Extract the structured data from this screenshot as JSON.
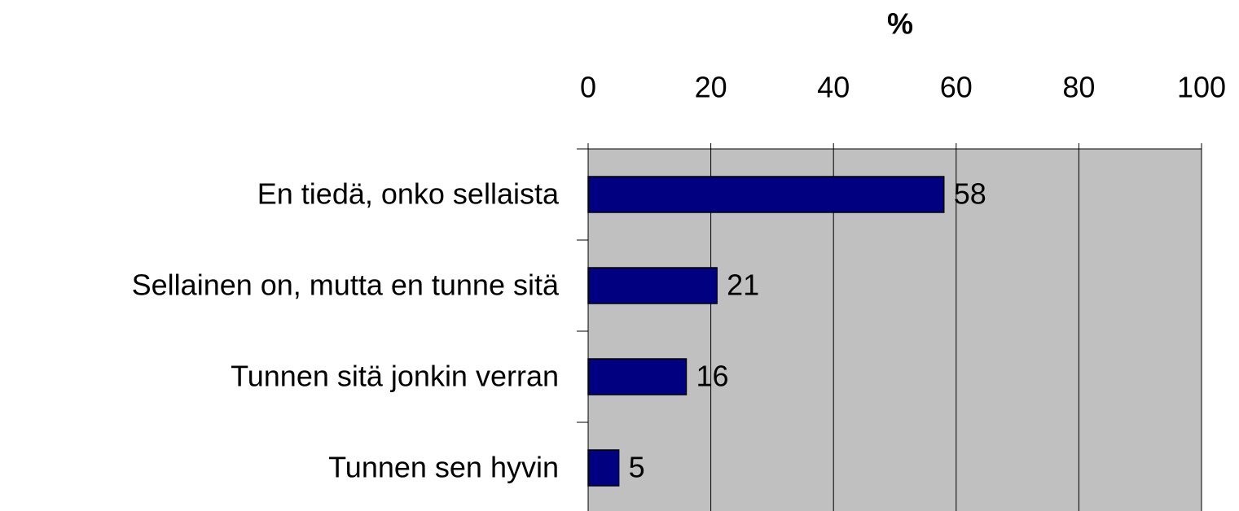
{
  "chart_data": {
    "type": "bar",
    "orientation": "horizontal",
    "x_label": "%",
    "categories": [
      "En tiedä, onko sellaista",
      "Sellainen on, mutta en tunne sitä",
      "Tunnen sitä jonkin verran",
      "Tunnen sen hyvin"
    ],
    "values": [
      58,
      21,
      16,
      5
    ],
    "color": "#000080",
    "background": "#c0c0c0",
    "xlim": [
      0,
      100
    ],
    "xticks": [
      0,
      20,
      40,
      60,
      80,
      100
    ],
    "grid": true
  }
}
